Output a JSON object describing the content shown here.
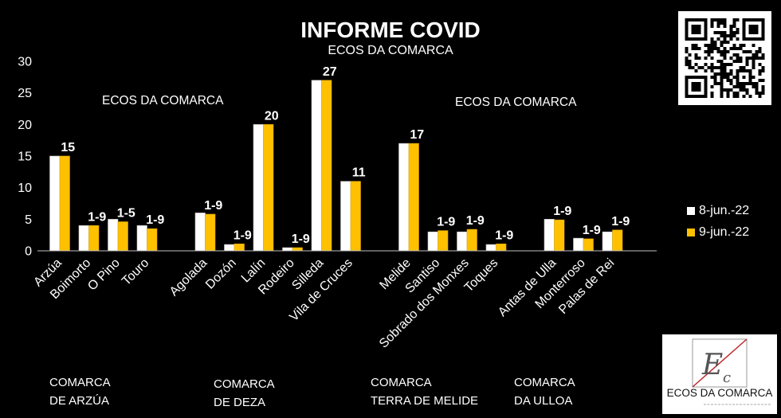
{
  "colors": {
    "background": "#000000",
    "text": "#FFFFFF",
    "series_8_jun": "#FFFFFF",
    "series_9_jun": "#FFC000",
    "logo_accent": "#C0272D"
  },
  "chart_data": {
    "type": "bar",
    "title": "INFORME COVID",
    "subtitle": "ECOS DA COMARCA",
    "xlabel": "",
    "ylabel": "",
    "ylim": [
      0,
      30
    ],
    "yticks": [
      0,
      5,
      10,
      15,
      20,
      25,
      30
    ],
    "grid": false,
    "legend_position": "right",
    "categories": [
      "Arzúa",
      "Boimorto",
      "O Pino",
      "Touro",
      "Agolada",
      "Dozón",
      "Lalín",
      "Rodeiro",
      "Silleda",
      "Vila de Cruces",
      "Melide",
      "Santiso",
      "Sobrado dos Monxes",
      "Toques",
      "Antas de Ulla",
      "Monterroso",
      "Palas de Rei"
    ],
    "series": [
      {
        "name": "8-jun.-22",
        "color": "#FFFFFF",
        "values": [
          15,
          4,
          5,
          4,
          6,
          1,
          20,
          0.5,
          27,
          11,
          17,
          3,
          3,
          1,
          5,
          2,
          3
        ]
      },
      {
        "name": "9-jun.-22",
        "color": "#FFC000",
        "values": [
          15,
          4,
          4.6,
          3.5,
          5.8,
          1.1,
          20,
          0.5,
          27,
          11,
          17,
          3.2,
          3.4,
          1.1,
          4.9,
          1.9,
          3.3
        ],
        "labels": [
          "15",
          "1-9",
          "1-5",
          "1-9",
          "1-9",
          "1-9",
          "20",
          "1-9",
          "27",
          "11",
          "17",
          "1-9",
          "1-9",
          "1-9",
          "1-9",
          "1-9",
          "1-9"
        ]
      }
    ],
    "annotations": [
      "ECOS DA COMARCA",
      "ECOS DA COMARCA"
    ]
  },
  "group_labels": [
    {
      "line1": "COMARCA",
      "line2": "DE ARZÚA"
    },
    {
      "line1": "COMARCA",
      "line2": "DE DEZA"
    },
    {
      "line1": "COMARCA",
      "line2": "TERRA DE MELIDE"
    },
    {
      "line1": "COMARCA",
      "line2": "DA ULLOA"
    }
  ],
  "qr_code": {
    "icon": "qr-code-icon"
  },
  "logo": {
    "monogram_main": "E",
    "monogram_sub": "c",
    "text": "ECOS DA COMARCA"
  }
}
